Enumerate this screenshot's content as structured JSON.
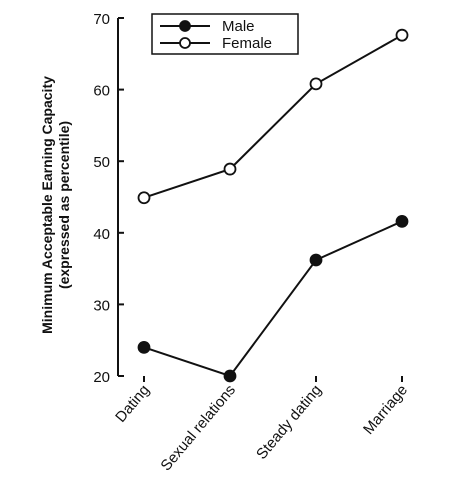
{
  "chart_data": {
    "type": "line",
    "y_label": [
      "Minimum Acceptable Earning Capacity",
      "(expressed as percentile)"
    ],
    "categories": [
      "Dating",
      "Sexual relations",
      "Steady dating",
      "Marriage"
    ],
    "series": [
      {
        "name": "Male",
        "color": "#111111",
        "marker": "filled",
        "values": [
          24,
          20,
          36.2,
          41.6
        ]
      },
      {
        "name": "Female",
        "color": "#111111",
        "marker": "open",
        "values": [
          44.9,
          48.9,
          60.8,
          67.6
        ]
      }
    ],
    "ylim": [
      20,
      70
    ],
    "yticks": [
      20,
      30,
      40,
      50,
      60,
      70
    ],
    "legend": "upper left"
  }
}
